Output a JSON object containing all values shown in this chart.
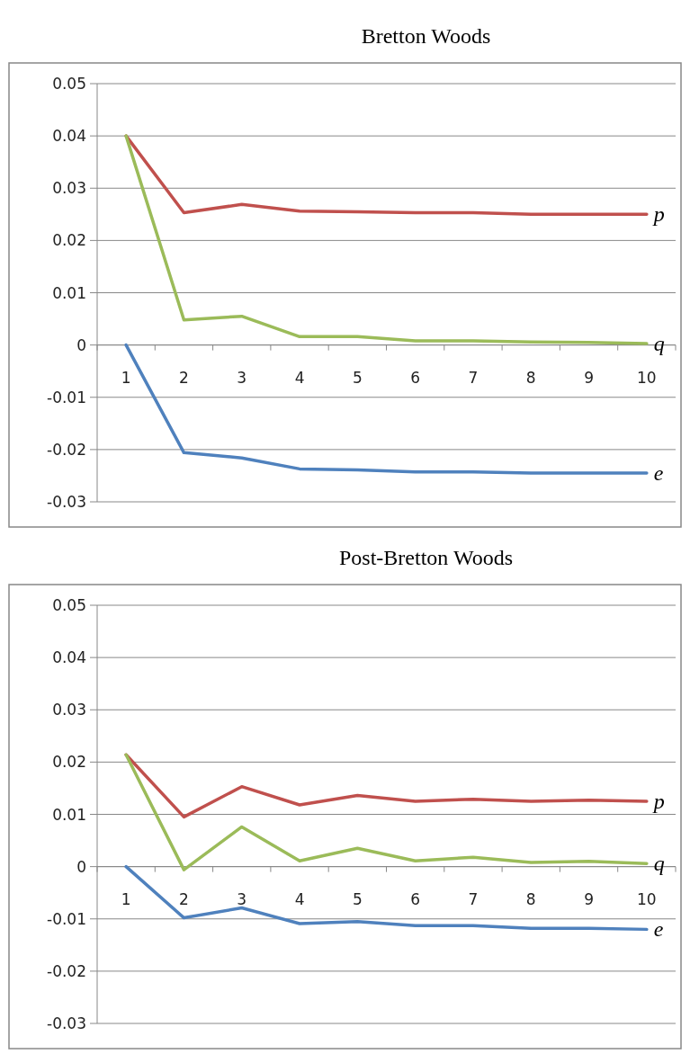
{
  "chart_data": [
    {
      "type": "line",
      "title": "Bretton Woods",
      "categories": [
        "1",
        "2",
        "3",
        "4",
        "5",
        "6",
        "7",
        "8",
        "9",
        "10"
      ],
      "series": [
        {
          "name": "p",
          "color": "#c0504d",
          "values": [
            0.04,
            0.0253,
            0.0269,
            0.0256,
            0.0255,
            0.0253,
            0.0253,
            0.025,
            0.025,
            0.025
          ]
        },
        {
          "name": "q",
          "color": "#9bbb59",
          "values": [
            0.04,
            0.0048,
            0.0055,
            0.0016,
            0.0016,
            0.0008,
            0.0008,
            0.0006,
            0.0005,
            0.0003
          ]
        },
        {
          "name": "e",
          "color": "#4f81bd",
          "values": [
            0,
            -0.0206,
            -0.0216,
            -0.0237,
            -0.0239,
            -0.0243,
            -0.0243,
            -0.0245,
            -0.0245,
            -0.0245
          ]
        }
      ],
      "ylim": [
        -0.03,
        0.05
      ],
      "yticks": [
        -0.03,
        -0.02,
        -0.01,
        0,
        0.01,
        0.02,
        0.03,
        0.04,
        0.05
      ],
      "grid": "y"
    },
    {
      "type": "line",
      "title": "Post-Bretton Woods",
      "categories": [
        "1",
        "2",
        "3",
        "4",
        "5",
        "6",
        "7",
        "8",
        "9",
        "10"
      ],
      "series": [
        {
          "name": "p",
          "color": "#c0504d",
          "values": [
            0.0214,
            0.0095,
            0.0153,
            0.0118,
            0.0136,
            0.0125,
            0.0129,
            0.0125,
            0.0127,
            0.0125
          ]
        },
        {
          "name": "q",
          "color": "#9bbb59",
          "values": [
            0.0214,
            -0.0006,
            0.0076,
            0.0011,
            0.0035,
            0.0011,
            0.0018,
            0.0008,
            0.001,
            0.0006
          ]
        },
        {
          "name": "e",
          "color": "#4f81bd",
          "values": [
            0,
            -0.0098,
            -0.0079,
            -0.0109,
            -0.0105,
            -0.0113,
            -0.0113,
            -0.0118,
            -0.0118,
            -0.012
          ]
        }
      ],
      "ylim": [
        -0.03,
        0.05
      ],
      "yticks": [
        -0.03,
        -0.02,
        -0.01,
        0,
        0.01,
        0.02,
        0.03,
        0.04,
        0.05
      ],
      "grid": "y"
    }
  ]
}
